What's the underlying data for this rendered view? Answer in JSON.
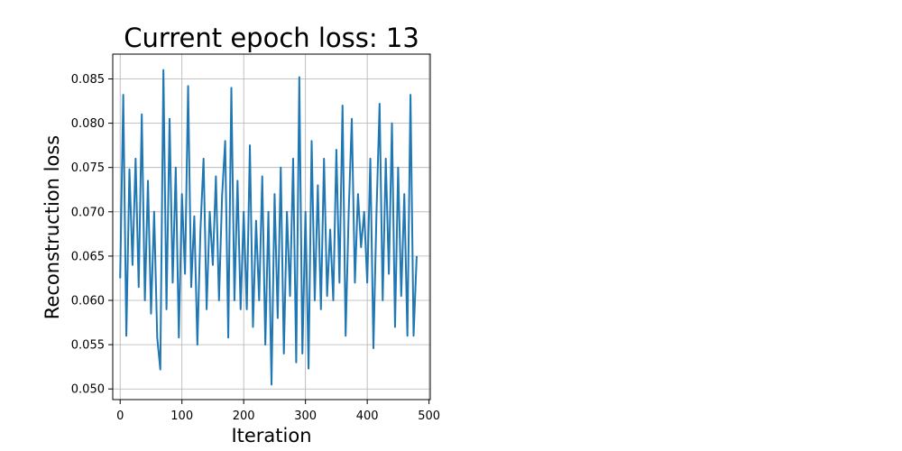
{
  "chart_data": {
    "type": "line",
    "title": "Current epoch loss: 13",
    "xlabel": "Iteration",
    "ylabel": "Reconstruction loss",
    "xlim": [
      -12,
      502
    ],
    "ylim": [
      0.0488,
      0.0878
    ],
    "xticks": [
      0,
      100,
      200,
      300,
      400,
      500
    ],
    "yticks": [
      0.05,
      0.055,
      0.06,
      0.065,
      0.07,
      0.075,
      0.08,
      0.085
    ],
    "ytick_labels": [
      "0.050",
      "0.055",
      "0.060",
      "0.065",
      "0.070",
      "0.075",
      "0.080",
      "0.085"
    ],
    "grid": true,
    "series_color": "#1f77b4",
    "series": [
      {
        "x": [
          0,
          5,
          10,
          15,
          20,
          25,
          30,
          35,
          40,
          45,
          50,
          55,
          60,
          65,
          70,
          75,
          80,
          85,
          90,
          95,
          100,
          105,
          110,
          115,
          120,
          125,
          130,
          135,
          140,
          145,
          150,
          155,
          160,
          165,
          170,
          175,
          180,
          185,
          190,
          195,
          200,
          205,
          210,
          215,
          220,
          225,
          230,
          235,
          240,
          245,
          250,
          255,
          260,
          265,
          270,
          275,
          280,
          285,
          290,
          295,
          300,
          305,
          310,
          315,
          320,
          325,
          330,
          335,
          340,
          345,
          350,
          355,
          360,
          365,
          370,
          375,
          380,
          385,
          390,
          395,
          400,
          405,
          410,
          415,
          420,
          425,
          430,
          435,
          440,
          445,
          450,
          455,
          460,
          465,
          470,
          475,
          480
        ],
        "values": [
          0.0625,
          0.0832,
          0.056,
          0.0748,
          0.064,
          0.076,
          0.0615,
          0.081,
          0.06,
          0.0735,
          0.0585,
          0.07,
          0.0558,
          0.0522,
          0.086,
          0.059,
          0.0805,
          0.062,
          0.075,
          0.0558,
          0.072,
          0.063,
          0.0842,
          0.0615,
          0.0695,
          0.055,
          0.068,
          0.076,
          0.059,
          0.07,
          0.064,
          0.074,
          0.06,
          0.0718,
          0.078,
          0.0558,
          0.084,
          0.06,
          0.0735,
          0.059,
          0.07,
          0.059,
          0.0775,
          0.057,
          0.069,
          0.06,
          0.074,
          0.055,
          0.07,
          0.0505,
          0.072,
          0.058,
          0.075,
          0.054,
          0.07,
          0.0605,
          0.076,
          0.053,
          0.0852,
          0.054,
          0.07,
          0.0523,
          0.078,
          0.06,
          0.073,
          0.059,
          0.076,
          0.0605,
          0.068,
          0.06,
          0.077,
          0.062,
          0.082,
          0.056,
          0.07,
          0.0805,
          0.062,
          0.072,
          0.066,
          0.07,
          0.062,
          0.076,
          0.0546,
          0.07,
          0.0822,
          0.06,
          0.076,
          0.063,
          0.08,
          0.057,
          0.075,
          0.0605,
          0.072,
          0.056,
          0.0832,
          0.056,
          0.065
        ]
      }
    ]
  }
}
